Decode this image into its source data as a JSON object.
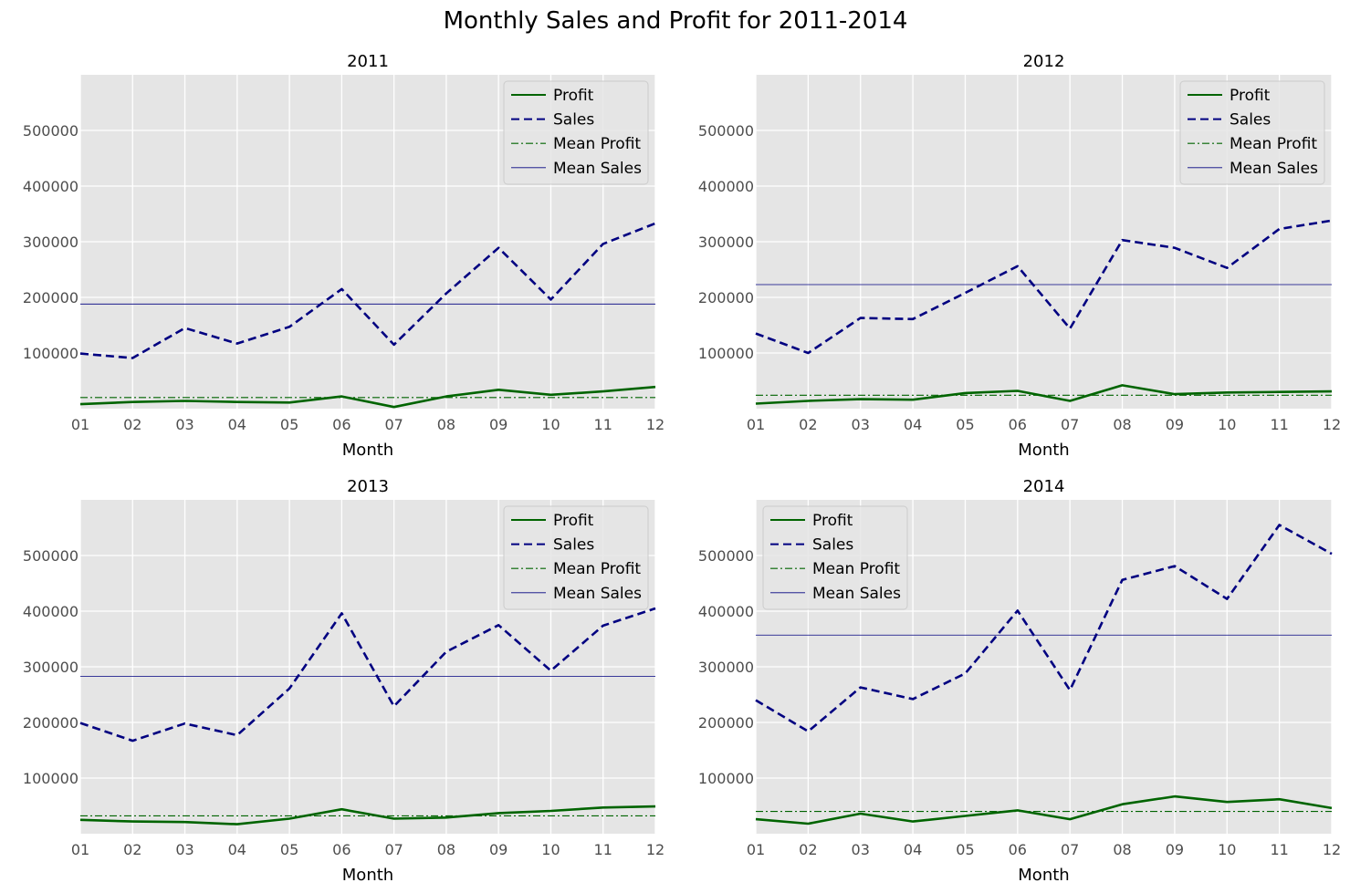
{
  "figure": {
    "title": "Monthly Sales and Profit for 2011-2014"
  },
  "colors": {
    "background": "#e5e5e5",
    "grid": "#ffffff",
    "profit": "#006400",
    "sales": "#000080",
    "mean_profit": "#006400",
    "mean_sales": "#000080"
  },
  "chart_data": [
    {
      "type": "line",
      "title": "2011",
      "xlabel": "Month",
      "ylabel": "",
      "x": [
        "01",
        "02",
        "03",
        "04",
        "05",
        "06",
        "07",
        "08",
        "09",
        "10",
        "11",
        "12"
      ],
      "ylim": [
        0,
        600000
      ],
      "yticks": [
        100000,
        200000,
        300000,
        400000,
        500000
      ],
      "grid": true,
      "legend_position": "upper right",
      "series": [
        {
          "name": "Profit",
          "style": "solid",
          "values": [
            8000,
            12000,
            14000,
            12000,
            11000,
            22000,
            3000,
            22000,
            34000,
            25000,
            31000,
            39000
          ]
        },
        {
          "name": "Sales",
          "style": "dashed",
          "values": [
            99000,
            91000,
            145000,
            117000,
            147000,
            215000,
            115000,
            207000,
            289000,
            196000,
            296000,
            333000
          ]
        }
      ],
      "means": [
        {
          "name": "Mean Profit",
          "style": "dashdot",
          "value": 20000
        },
        {
          "name": "Mean Sales",
          "style": "thin",
          "value": 188000
        }
      ]
    },
    {
      "type": "line",
      "title": "2012",
      "xlabel": "Month",
      "ylabel": "",
      "x": [
        "01",
        "02",
        "03",
        "04",
        "05",
        "06",
        "07",
        "08",
        "09",
        "10",
        "11",
        "12"
      ],
      "ylim": [
        0,
        600000
      ],
      "yticks": [
        100000,
        200000,
        300000,
        400000,
        500000
      ],
      "grid": true,
      "legend_position": "upper right",
      "series": [
        {
          "name": "Profit",
          "style": "solid",
          "values": [
            9000,
            14000,
            17000,
            16000,
            28000,
            32000,
            14000,
            42000,
            26000,
            29000,
            30000,
            31000
          ]
        },
        {
          "name": "Sales",
          "style": "dashed",
          "values": [
            135000,
            100000,
            163000,
            161000,
            208000,
            256000,
            144000,
            303000,
            289000,
            253000,
            323000,
            338000
          ]
        }
      ],
      "means": [
        {
          "name": "Mean Profit",
          "style": "dashdot",
          "value": 24000
        },
        {
          "name": "Mean Sales",
          "style": "thin",
          "value": 223000
        }
      ]
    },
    {
      "type": "line",
      "title": "2013",
      "xlabel": "Month",
      "ylabel": "",
      "x": [
        "01",
        "02",
        "03",
        "04",
        "05",
        "06",
        "07",
        "08",
        "09",
        "10",
        "11",
        "12"
      ],
      "ylim": [
        0,
        600000
      ],
      "yticks": [
        100000,
        200000,
        300000,
        400000,
        500000
      ],
      "grid": true,
      "legend_position": "upper right",
      "series": [
        {
          "name": "Profit",
          "style": "solid",
          "values": [
            25000,
            22000,
            21000,
            17000,
            27000,
            44000,
            27000,
            29000,
            37000,
            41000,
            47000,
            49000
          ]
        },
        {
          "name": "Sales",
          "style": "dashed",
          "values": [
            199000,
            167000,
            198000,
            177000,
            261000,
            396000,
            229000,
            327000,
            375000,
            293000,
            374000,
            405000
          ]
        }
      ],
      "means": [
        {
          "name": "Mean Profit",
          "style": "dashdot",
          "value": 32000
        },
        {
          "name": "Mean Sales",
          "style": "thin",
          "value": 283000
        }
      ]
    },
    {
      "type": "line",
      "title": "2014",
      "xlabel": "Month",
      "ylabel": "",
      "x": [
        "01",
        "02",
        "03",
        "04",
        "05",
        "06",
        "07",
        "08",
        "09",
        "10",
        "11",
        "12"
      ],
      "ylim": [
        0,
        600000
      ],
      "yticks": [
        100000,
        200000,
        300000,
        400000,
        500000
      ],
      "grid": true,
      "legend_position": "upper left",
      "series": [
        {
          "name": "Profit",
          "style": "solid",
          "values": [
            26000,
            18000,
            36000,
            22000,
            32000,
            42000,
            26000,
            53000,
            67000,
            57000,
            62000,
            46000
          ]
        },
        {
          "name": "Sales",
          "style": "dashed",
          "values": [
            240000,
            184000,
            263000,
            242000,
            288000,
            401000,
            258000,
            456000,
            481000,
            422000,
            555000,
            503000
          ]
        }
      ],
      "means": [
        {
          "name": "Mean Profit",
          "style": "dashdot",
          "value": 40000
        },
        {
          "name": "Mean Sales",
          "style": "thin",
          "value": 357000
        }
      ]
    }
  ]
}
